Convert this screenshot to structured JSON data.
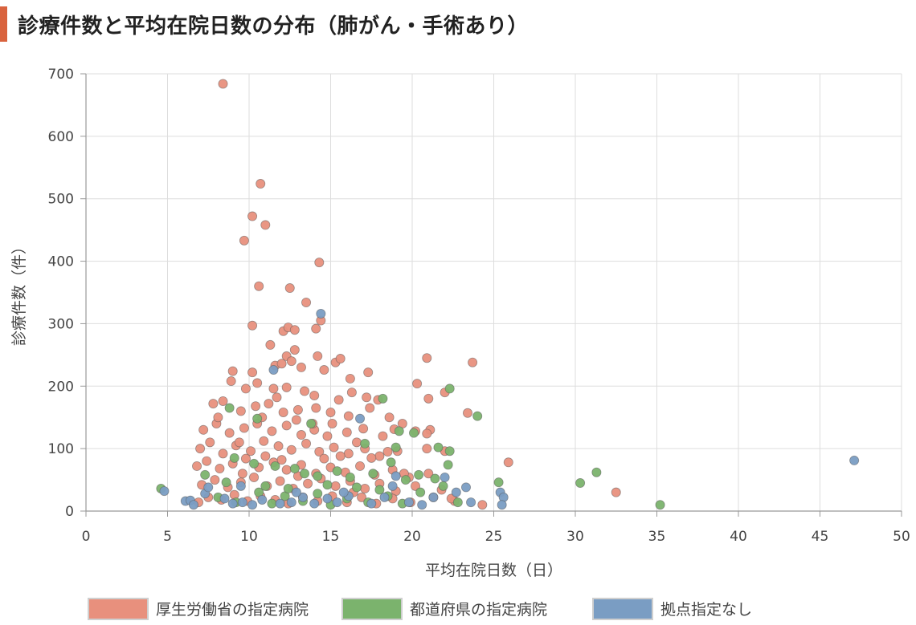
{
  "title": "診療件数と平均在院日数の分布（肺がん・手術あり）",
  "chart_data": {
    "type": "scatter",
    "title": "診療件数と平均在院日数の分布（肺がん・手術あり）",
    "xlabel": "平均在院日数（日）",
    "ylabel": "診療件数（件）",
    "xlim": [
      0,
      50
    ],
    "ylim": [
      0,
      700
    ],
    "xticks": [
      "0",
      "5",
      "10",
      "15",
      "20",
      "25",
      "30",
      "35",
      "40",
      "45",
      "50"
    ],
    "yticks": [
      "0",
      "100",
      "200",
      "300",
      "400",
      "500",
      "600",
      "700"
    ],
    "grid": true,
    "legend_position": "bottom",
    "series": [
      {
        "name": "厚生労働省の指定病院",
        "color": "#e8907d",
        "points": [
          [
            8.4,
            684
          ],
          [
            10.7,
            524
          ],
          [
            10.2,
            472
          ],
          [
            11.0,
            458
          ],
          [
            9.7,
            433
          ],
          [
            14.3,
            398
          ],
          [
            10.6,
            360
          ],
          [
            12.5,
            357
          ],
          [
            13.5,
            334
          ],
          [
            14.4,
            305
          ],
          [
            14.1,
            292
          ],
          [
            10.2,
            297
          ],
          [
            12.1,
            288
          ],
          [
            12.4,
            294
          ],
          [
            12.8,
            290
          ],
          [
            11.3,
            266
          ],
          [
            12.8,
            258
          ],
          [
            12.3,
            248
          ],
          [
            14.2,
            248
          ],
          [
            15.3,
            238
          ],
          [
            15.6,
            244
          ],
          [
            11.6,
            233
          ],
          [
            12.0,
            236
          ],
          [
            12.6,
            240
          ],
          [
            13.2,
            230
          ],
          [
            14.6,
            226
          ],
          [
            9.0,
            224
          ],
          [
            10.2,
            222
          ],
          [
            16.2,
            212
          ],
          [
            17.3,
            222
          ],
          [
            23.7,
            238
          ],
          [
            20.9,
            245
          ],
          [
            8.9,
            208
          ],
          [
            9.8,
            196
          ],
          [
            10.5,
            205
          ],
          [
            11.5,
            196
          ],
          [
            12.3,
            198
          ],
          [
            13.4,
            192
          ],
          [
            14.0,
            185
          ],
          [
            15.5,
            178
          ],
          [
            16.3,
            190
          ],
          [
            17.2,
            182
          ],
          [
            17.9,
            178
          ],
          [
            20.3,
            204
          ],
          [
            21.0,
            180
          ],
          [
            22.0,
            190
          ],
          [
            7.8,
            172
          ],
          [
            8.4,
            176
          ],
          [
            9.5,
            160
          ],
          [
            10.4,
            168
          ],
          [
            11.2,
            172
          ],
          [
            12.1,
            158
          ],
          [
            13.0,
            162
          ],
          [
            14.1,
            165
          ],
          [
            15.0,
            158
          ],
          [
            16.1,
            152
          ],
          [
            17.4,
            165
          ],
          [
            18.6,
            150
          ],
          [
            19.4,
            140
          ],
          [
            21.1,
            130
          ],
          [
            23.4,
            157
          ],
          [
            7.2,
            130
          ],
          [
            8.0,
            140
          ],
          [
            8.8,
            125
          ],
          [
            9.7,
            133
          ],
          [
            10.5,
            140
          ],
          [
            11.4,
            128
          ],
          [
            12.3,
            137
          ],
          [
            13.2,
            122
          ],
          [
            14.0,
            130
          ],
          [
            15.1,
            140
          ],
          [
            16.0,
            126
          ],
          [
            17.0,
            132
          ],
          [
            18.2,
            120
          ],
          [
            18.9,
            131
          ],
          [
            20.2,
            128
          ],
          [
            20.9,
            124
          ],
          [
            7.0,
            100
          ],
          [
            7.6,
            110
          ],
          [
            8.4,
            92
          ],
          [
            9.2,
            105
          ],
          [
            10.1,
            96
          ],
          [
            10.9,
            112
          ],
          [
            11.8,
            104
          ],
          [
            12.6,
            98
          ],
          [
            13.5,
            108
          ],
          [
            14.3,
            95
          ],
          [
            15.2,
            102
          ],
          [
            16.1,
            92
          ],
          [
            17.1,
            100
          ],
          [
            18.0,
            88
          ],
          [
            19.1,
            96
          ],
          [
            20.9,
            100
          ],
          [
            22.0,
            96
          ],
          [
            6.8,
            72
          ],
          [
            7.4,
            80
          ],
          [
            8.2,
            68
          ],
          [
            9.0,
            76
          ],
          [
            9.8,
            84
          ],
          [
            10.6,
            70
          ],
          [
            11.5,
            78
          ],
          [
            12.3,
            66
          ],
          [
            13.2,
            74
          ],
          [
            14.1,
            60
          ],
          [
            15.0,
            70
          ],
          [
            15.9,
            62
          ],
          [
            16.8,
            72
          ],
          [
            17.7,
            58
          ],
          [
            18.8,
            66
          ],
          [
            19.8,
            54
          ],
          [
            21.0,
            60
          ],
          [
            25.9,
            78
          ],
          [
            7.1,
            42
          ],
          [
            7.9,
            50
          ],
          [
            8.7,
            38
          ],
          [
            9.5,
            46
          ],
          [
            10.3,
            54
          ],
          [
            11.1,
            40
          ],
          [
            11.9,
            48
          ],
          [
            12.7,
            36
          ],
          [
            13.6,
            44
          ],
          [
            14.4,
            52
          ],
          [
            15.3,
            40
          ],
          [
            16.2,
            48
          ],
          [
            17.1,
            36
          ],
          [
            18.0,
            44
          ],
          [
            19.0,
            32
          ],
          [
            20.2,
            40
          ],
          [
            21.8,
            34
          ],
          [
            6.9,
            14
          ],
          [
            7.5,
            22
          ],
          [
            8.3,
            18
          ],
          [
            9.1,
            26
          ],
          [
            9.9,
            16
          ],
          [
            10.7,
            24
          ],
          [
            11.6,
            18
          ],
          [
            12.4,
            12
          ],
          [
            13.3,
            22
          ],
          [
            14.2,
            16
          ],
          [
            15.1,
            24
          ],
          [
            16.0,
            14
          ],
          [
            16.9,
            22
          ],
          [
            17.8,
            12
          ],
          [
            18.8,
            20
          ],
          [
            19.9,
            14
          ],
          [
            21.3,
            22
          ],
          [
            22.6,
            16
          ],
          [
            24.3,
            10
          ],
          [
            32.5,
            30
          ],
          [
            8.1,
            150
          ],
          [
            9.4,
            110
          ],
          [
            10.8,
            150
          ],
          [
            11.7,
            182
          ],
          [
            12.9,
            146
          ],
          [
            13.9,
            140
          ],
          [
            14.8,
            120
          ],
          [
            16.6,
            110
          ],
          [
            18.5,
            95
          ],
          [
            9.6,
            60
          ],
          [
            11.0,
            88
          ],
          [
            12.0,
            82
          ],
          [
            13.0,
            56
          ],
          [
            14.6,
            84
          ],
          [
            15.6,
            88
          ],
          [
            16.4,
            30
          ],
          [
            17.5,
            85
          ],
          [
            19.5,
            60
          ],
          [
            22.4,
            20
          ]
        ]
      },
      {
        "name": "都道府県の指定病院",
        "color": "#7bb36d",
        "points": [
          [
            4.6,
            36
          ],
          [
            8.8,
            165
          ],
          [
            10.5,
            148
          ],
          [
            13.8,
            140
          ],
          [
            18.2,
            180
          ],
          [
            22.3,
            196
          ],
          [
            24.0,
            152
          ],
          [
            19.2,
            128
          ],
          [
            20.1,
            125
          ],
          [
            21.6,
            102
          ],
          [
            22.3,
            96
          ],
          [
            19.0,
            102
          ],
          [
            17.1,
            108
          ],
          [
            9.1,
            85
          ],
          [
            10.3,
            76
          ],
          [
            11.6,
            72
          ],
          [
            12.8,
            68
          ],
          [
            13.4,
            60
          ],
          [
            14.2,
            56
          ],
          [
            15.4,
            64
          ],
          [
            16.2,
            54
          ],
          [
            17.6,
            60
          ],
          [
            18.7,
            78
          ],
          [
            19.6,
            50
          ],
          [
            20.4,
            58
          ],
          [
            21.4,
            52
          ],
          [
            22.2,
            74
          ],
          [
            25.3,
            46
          ],
          [
            8.1,
            22
          ],
          [
            9.2,
            14
          ],
          [
            10.6,
            30
          ],
          [
            11.4,
            12
          ],
          [
            12.2,
            24
          ],
          [
            13.3,
            16
          ],
          [
            14.2,
            28
          ],
          [
            15.0,
            10
          ],
          [
            16.0,
            20
          ],
          [
            17.3,
            14
          ],
          [
            18.5,
            24
          ],
          [
            19.4,
            12
          ],
          [
            20.5,
            30
          ],
          [
            22.8,
            14
          ],
          [
            30.3,
            45
          ],
          [
            31.3,
            62
          ],
          [
            35.2,
            10
          ],
          [
            7.3,
            58
          ],
          [
            8.6,
            46
          ],
          [
            11.0,
            40
          ],
          [
            12.4,
            36
          ],
          [
            14.8,
            42
          ],
          [
            16.6,
            38
          ],
          [
            18.0,
            34
          ],
          [
            21.9,
            40
          ]
        ]
      },
      {
        "name": "拠点指定なし",
        "color": "#7a9dc3",
        "points": [
          [
            4.8,
            32
          ],
          [
            6.1,
            16
          ],
          [
            6.4,
            17
          ],
          [
            6.6,
            10
          ],
          [
            7.3,
            28
          ],
          [
            7.5,
            38
          ],
          [
            8.5,
            20
          ],
          [
            9.0,
            12
          ],
          [
            9.6,
            14
          ],
          [
            10.2,
            10
          ],
          [
            10.8,
            18
          ],
          [
            11.5,
            226
          ],
          [
            11.9,
            12
          ],
          [
            12.6,
            14
          ],
          [
            13.3,
            22
          ],
          [
            14.0,
            12
          ],
          [
            14.4,
            316
          ],
          [
            14.8,
            20
          ],
          [
            15.4,
            14
          ],
          [
            16.1,
            24
          ],
          [
            16.8,
            148
          ],
          [
            17.5,
            12
          ],
          [
            18.3,
            22
          ],
          [
            19.0,
            56
          ],
          [
            19.8,
            14
          ],
          [
            20.6,
            10
          ],
          [
            21.3,
            22
          ],
          [
            22.0,
            54
          ],
          [
            22.7,
            30
          ],
          [
            23.3,
            38
          ],
          [
            23.6,
            14
          ],
          [
            25.4,
            30
          ],
          [
            25.6,
            22
          ],
          [
            25.5,
            10
          ],
          [
            47.1,
            81
          ],
          [
            9.5,
            40
          ],
          [
            12.9,
            30
          ],
          [
            15.8,
            30
          ],
          [
            18.8,
            40
          ]
        ]
      }
    ]
  }
}
